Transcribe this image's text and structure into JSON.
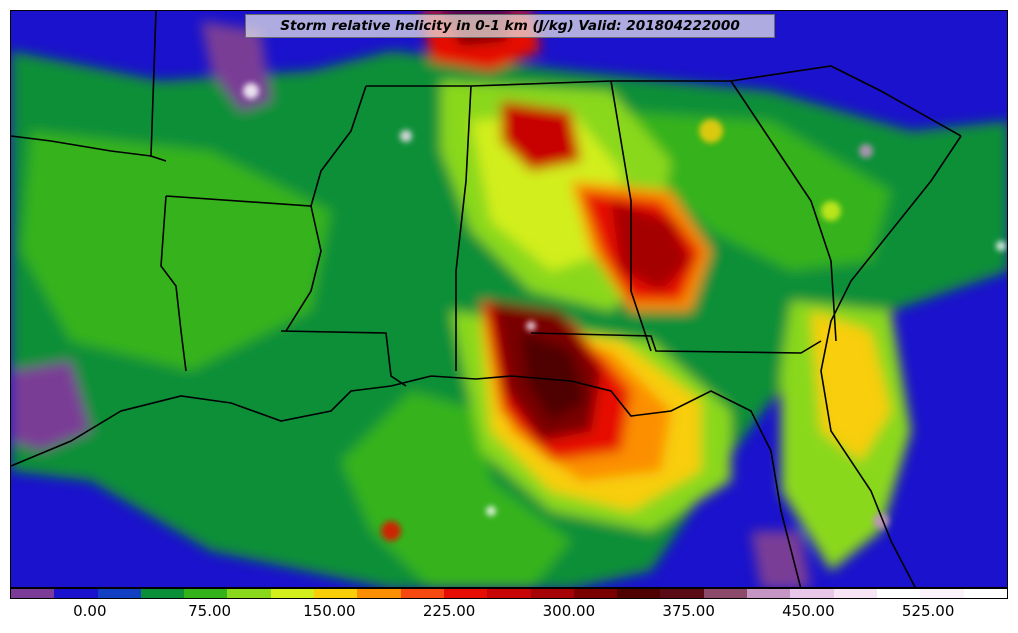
{
  "title": "Storm relative helicity in 0-1 km (J/kg) Valid: 201804222000",
  "colorbar": {
    "colors": [
      "#7a3c96",
      "#1a12cc",
      "#1141c2",
      "#0a8f38",
      "#34b21a",
      "#8ad81c",
      "#d2ee1c",
      "#f8ce08",
      "#fb8f03",
      "#f64811",
      "#e60d05",
      "#c70406",
      "#a50305",
      "#7a0000",
      "#4f0000",
      "#5a0a14",
      "#8c4a6a",
      "#c595c3",
      "#e9c7e8",
      "#f7e4f5",
      "#ffffff",
      "#fcf2fb",
      "#ffffff"
    ],
    "tick_labels": [
      "0.00",
      "75.00",
      "150.00",
      "225.00",
      "300.00",
      "375.00",
      "450.00",
      "525.00"
    ],
    "min": -50,
    "max": 575
  }
}
